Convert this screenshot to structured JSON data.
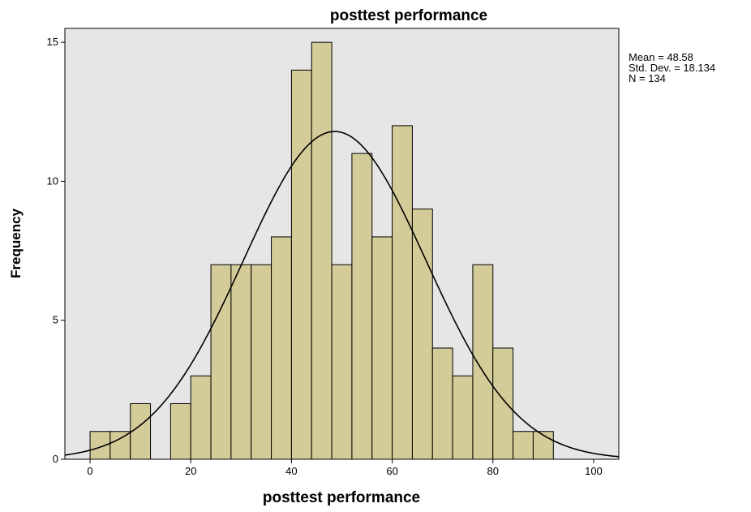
{
  "chart_data": {
    "type": "bar",
    "subtype": "histogram",
    "title": "posttest performance",
    "xlabel": "posttest performance",
    "ylabel": "Frequency",
    "xlim": [
      -5,
      105
    ],
    "ylim": [
      0,
      15.5
    ],
    "xticks": [
      0,
      20,
      40,
      60,
      80,
      100
    ],
    "yticks": [
      0,
      5,
      10,
      15
    ],
    "bin_width": 4,
    "bins": [
      {
        "x0": 0,
        "x1": 4,
        "count": 1
      },
      {
        "x0": 4,
        "x1": 8,
        "count": 1
      },
      {
        "x0": 8,
        "x1": 12,
        "count": 2
      },
      {
        "x0": 16,
        "x1": 20,
        "count": 2
      },
      {
        "x0": 20,
        "x1": 24,
        "count": 3
      },
      {
        "x0": 24,
        "x1": 28,
        "count": 7
      },
      {
        "x0": 28,
        "x1": 32,
        "count": 7
      },
      {
        "x0": 32,
        "x1": 36,
        "count": 7
      },
      {
        "x0": 36,
        "x1": 40,
        "count": 8
      },
      {
        "x0": 40,
        "x1": 44,
        "count": 14
      },
      {
        "x0": 44,
        "x1": 48,
        "count": 15
      },
      {
        "x0": 48,
        "x1": 52,
        "count": 7
      },
      {
        "x0": 52,
        "x1": 56,
        "count": 11
      },
      {
        "x0": 56,
        "x1": 60,
        "count": 8
      },
      {
        "x0": 60,
        "x1": 64,
        "count": 12
      },
      {
        "x0": 64,
        "x1": 68,
        "count": 9
      },
      {
        "x0": 68,
        "x1": 72,
        "count": 4
      },
      {
        "x0": 72,
        "x1": 76,
        "count": 3
      },
      {
        "x0": 76,
        "x1": 80,
        "count": 7
      },
      {
        "x0": 80,
        "x1": 84,
        "count": 4
      },
      {
        "x0": 84,
        "x1": 88,
        "count": 1
      },
      {
        "x0": 88,
        "x1": 92,
        "count": 1
      }
    ],
    "normal_curve": {
      "mean": 48.58,
      "std_dev": 18.134,
      "n": 134
    },
    "stats_text": [
      "Mean = 48.58",
      "Std. Dev. = 18.134",
      "N = 134"
    ],
    "grid": false,
    "colors": {
      "bar_fill": "#d4cc98",
      "bar_stroke": "#000000",
      "plot_background": "#e6e6e6",
      "curve": "#000000"
    }
  }
}
